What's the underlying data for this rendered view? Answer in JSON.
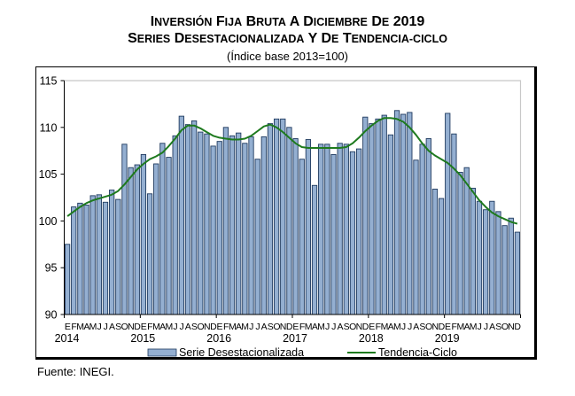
{
  "header": {
    "title_line1": "Inversión Fija Bruta a diciembre de 2019",
    "title_line2": "Series desestacionalizada y de tendencia-ciclo",
    "subtitle": "(Índice base 2013=100)"
  },
  "footer": {
    "source": "Fuente: INEGI."
  },
  "colors": {
    "bar_fill": "#94afd1",
    "bar_stroke": "#1f3a5f",
    "trend": "#1e7a1e",
    "plot_border": "#c8c8c8"
  },
  "chart_data": {
    "type": "bar+line",
    "title": "Inversión Fija Bruta a diciembre de 2019 — Series desestacionalizada y de tendencia-ciclo",
    "subtitle": "(Índice base 2013=100)",
    "xlabel": "",
    "ylabel": "",
    "ylim": [
      90,
      115
    ],
    "yticks": [
      90,
      95,
      100,
      105,
      110,
      115
    ],
    "grid": false,
    "legend_placement": "bottom",
    "month_labels": [
      "E",
      "F",
      "M",
      "A",
      "M",
      "J",
      "J",
      "A",
      "S",
      "O",
      "N",
      "D"
    ],
    "years": [
      "2014",
      "2015",
      "2016",
      "2017",
      "2018",
      "2019"
    ],
    "series": [
      {
        "name": "Serie Desestacionalizada",
        "type": "bar",
        "values": [
          97.5,
          101.5,
          101.9,
          101.7,
          102.7,
          102.8,
          102.0,
          103.3,
          102.3,
          108.2,
          105.7,
          106.0,
          107.1,
          102.9,
          106.1,
          108.3,
          106.8,
          109.1,
          111.2,
          110.3,
          110.7,
          109.5,
          109.3,
          108.0,
          108.5,
          110.0,
          109.1,
          109.4,
          108.3,
          109.0,
          106.6,
          109.0,
          110.4,
          110.9,
          110.9,
          110.0,
          108.8,
          106.6,
          108.7,
          103.8,
          108.2,
          108.2,
          107.1,
          108.3,
          108.2,
          107.4,
          107.7,
          111.1,
          110.4,
          110.9,
          111.3,
          109.2,
          111.8,
          111.4,
          111.6,
          106.5,
          108.2,
          108.8,
          103.4,
          102.4,
          111.5,
          109.3,
          105.2,
          105.7,
          103.5,
          102.1,
          101.2,
          102.1,
          101.0,
          99.5,
          100.3,
          98.8
        ]
      },
      {
        "name": "Tendencia-Ciclo",
        "type": "line",
        "values": [
          100.5,
          101.0,
          101.5,
          101.9,
          102.2,
          102.4,
          102.6,
          102.8,
          103.2,
          103.9,
          104.7,
          105.5,
          106.1,
          106.6,
          106.9,
          107.3,
          108.0,
          108.8,
          109.7,
          110.2,
          110.2,
          109.9,
          109.5,
          109.1,
          108.9,
          108.8,
          108.7,
          108.7,
          108.8,
          109.1,
          109.6,
          110.1,
          110.3,
          110.0,
          109.5,
          108.9,
          108.3,
          107.9,
          107.8,
          107.8,
          107.8,
          107.8,
          107.8,
          107.8,
          107.9,
          108.3,
          108.9,
          109.6,
          110.2,
          110.7,
          111.0,
          111.0,
          110.9,
          110.6,
          110.0,
          109.2,
          108.3,
          107.5,
          107.0,
          106.6,
          106.2,
          105.6,
          104.9,
          104.0,
          103.1,
          102.2,
          101.5,
          100.9,
          100.5,
          100.2,
          99.9,
          99.7
        ]
      }
    ]
  }
}
